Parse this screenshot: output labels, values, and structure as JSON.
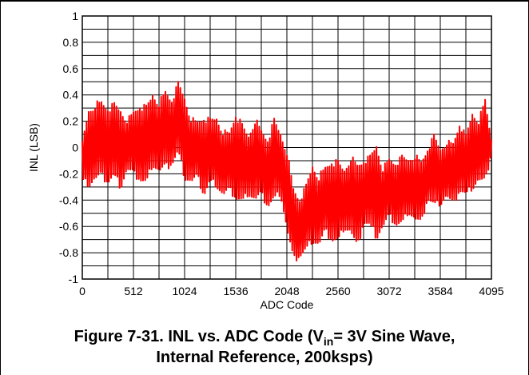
{
  "chart_data": {
    "type": "line",
    "title": "",
    "xlabel": "ADC Code",
    "ylabel": "INL (LSB)",
    "xlim": [
      0,
      4095
    ],
    "ylim": [
      -1,
      1
    ],
    "xticks": [
      "0",
      "512",
      "1024",
      "1536",
      "2048",
      "2560",
      "3072",
      "3584",
      "4095"
    ],
    "xtick_values": [
      0,
      512,
      1024,
      1536,
      2048,
      2560,
      3072,
      3584,
      4095
    ],
    "yticks": [
      "1",
      "0.8",
      "0.6",
      "0.4",
      "0.2",
      "0",
      "-0.2",
      "-0.4",
      "-0.6",
      "-0.8",
      "-1"
    ],
    "ytick_values": [
      1,
      0.8,
      0.6,
      0.4,
      0.2,
      0,
      -0.2,
      -0.4,
      -0.6,
      -0.8,
      -1
    ],
    "grid": true,
    "line_color": "#ff0000",
    "series": [
      {
        "name": "",
        "x": [
          0,
          64,
          128,
          192,
          256,
          320,
          384,
          448,
          512,
          576,
          640,
          704,
          768,
          832,
          896,
          960,
          1024,
          1088,
          1152,
          1216,
          1280,
          1344,
          1408,
          1472,
          1536,
          1600,
          1664,
          1728,
          1792,
          1856,
          1920,
          1984,
          2048,
          2112,
          2176,
          2240,
          2304,
          2368,
          2432,
          2496,
          2560,
          2624,
          2688,
          2752,
          2816,
          2880,
          2944,
          3008,
          3072,
          3136,
          3200,
          3264,
          3328,
          3392,
          3456,
          3520,
          3584,
          3648,
          3712,
          3776,
          3840,
          3904,
          3968,
          4032,
          4095
        ],
        "upper": [
          0.05,
          0.3,
          0.35,
          0.36,
          0.32,
          0.34,
          0.3,
          0.22,
          0.28,
          0.34,
          0.32,
          0.42,
          0.36,
          0.44,
          0.38,
          0.5,
          0.4,
          0.24,
          0.2,
          0.25,
          0.22,
          0.24,
          0.14,
          0.12,
          0.28,
          0.18,
          0.1,
          0.24,
          0.14,
          0.08,
          0.22,
          0.12,
          0.0,
          -0.3,
          -0.38,
          -0.28,
          -0.12,
          -0.2,
          -0.14,
          -0.08,
          -0.1,
          -0.16,
          -0.05,
          -0.12,
          -0.08,
          -0.06,
          0.04,
          -0.14,
          -0.08,
          -0.1,
          -0.06,
          -0.08,
          -0.04,
          -0.1,
          0.0,
          0.1,
          0.0,
          0.06,
          0.04,
          0.2,
          0.1,
          0.28,
          0.22,
          0.38,
          0.06
        ],
        "lower": [
          -0.26,
          -0.3,
          -0.26,
          -0.24,
          -0.28,
          -0.24,
          -0.32,
          -0.18,
          -0.22,
          -0.26,
          -0.3,
          -0.14,
          -0.2,
          -0.18,
          -0.14,
          -0.06,
          -0.24,
          -0.28,
          -0.24,
          -0.38,
          -0.28,
          -0.3,
          -0.38,
          -0.34,
          -0.4,
          -0.44,
          -0.36,
          -0.42,
          -0.38,
          -0.46,
          -0.42,
          -0.36,
          -0.64,
          -0.88,
          -0.84,
          -0.8,
          -0.72,
          -0.76,
          -0.66,
          -0.72,
          -0.74,
          -0.62,
          -0.66,
          -0.8,
          -0.58,
          -0.62,
          -0.7,
          -0.62,
          -0.54,
          -0.6,
          -0.6,
          -0.5,
          -0.56,
          -0.6,
          -0.4,
          -0.46,
          -0.44,
          -0.38,
          -0.46,
          -0.34,
          -0.38,
          -0.32,
          -0.26,
          -0.3,
          -0.04
        ]
      }
    ]
  },
  "caption": {
    "line1_pre": "Figure 7-31. INL vs. ADC Code (V",
    "line1_sub": "in",
    "line1_post": "= 3V Sine Wave,",
    "line2": "Internal Reference, 200ksps)"
  }
}
